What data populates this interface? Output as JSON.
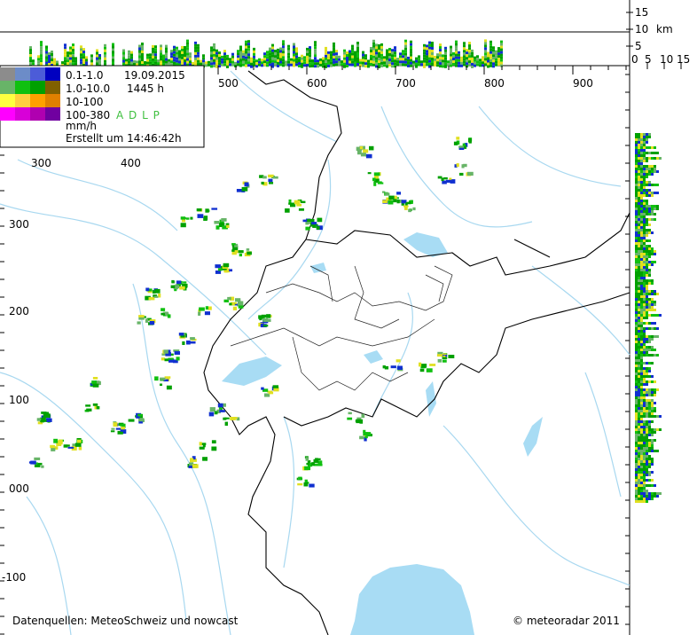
{
  "legend": {
    "rows": [
      {
        "range": "0.1-1.0",
        "info": "19.09.2015"
      },
      {
        "range": "1.0-10.0",
        "info": "1445 h"
      },
      {
        "range": "10-100"
      },
      {
        "range": "100-380",
        "info": "A D L P"
      }
    ],
    "unit": "mm/h",
    "created": "Erstellt um 14:46:42h"
  },
  "axes": {
    "top": [
      "500",
      "600",
      "700",
      "800",
      "900"
    ],
    "inner_top": [
      "300",
      "400"
    ],
    "left": [
      "300",
      "200",
      "100",
      "000",
      "-100"
    ]
  },
  "profile_axis": {
    "height": [
      "15",
      "10",
      "5"
    ],
    "height_unit": "km",
    "width": [
      "0",
      "5",
      "10",
      "15"
    ]
  },
  "footer": {
    "sources": "Datenquellen: MeteoSchweiz und nowcast",
    "copyright": "© meteoradar 2011"
  }
}
